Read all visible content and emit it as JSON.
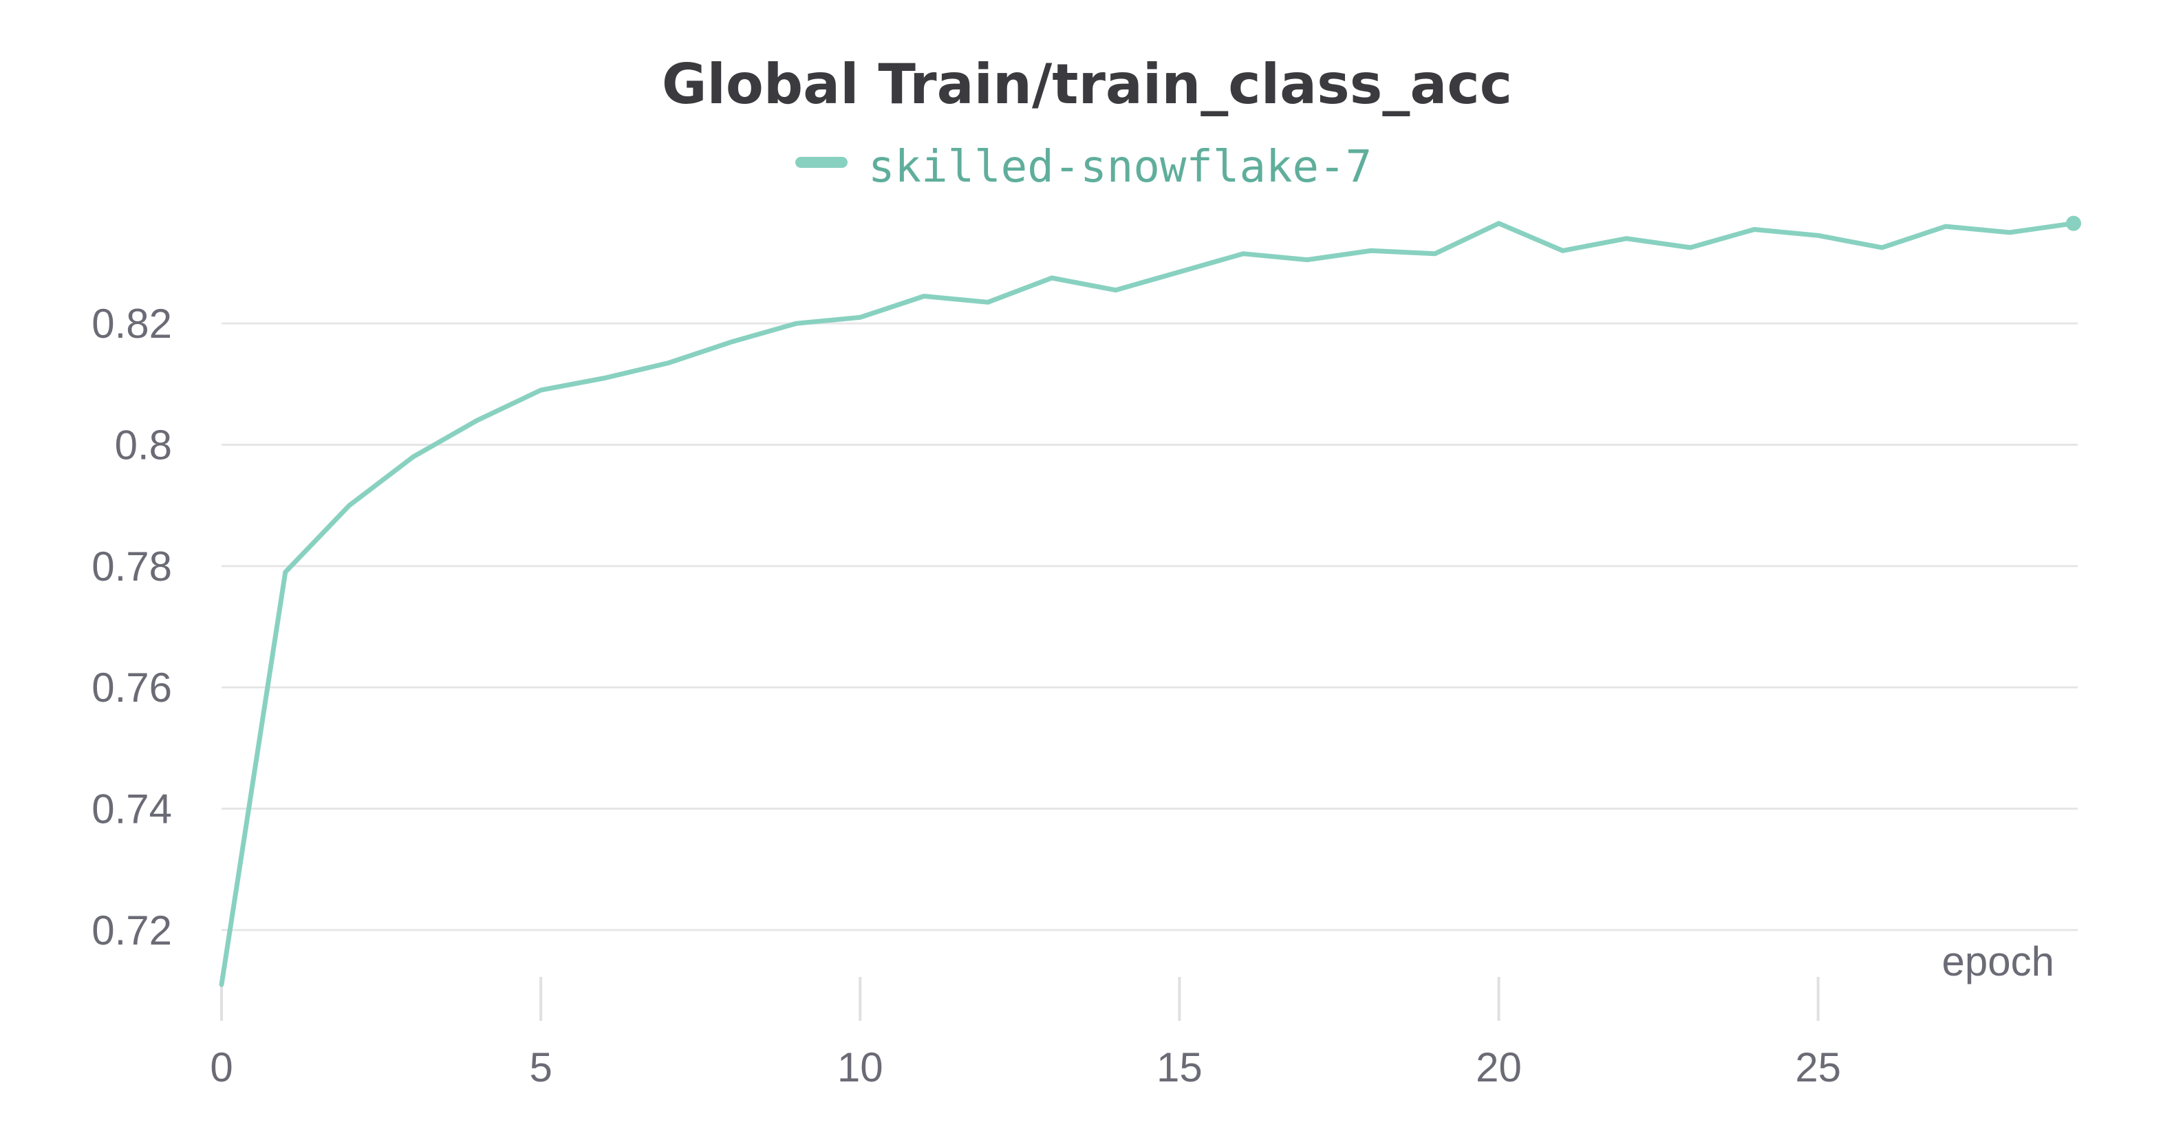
{
  "chart_data": {
    "type": "line",
    "title": "Global Train/train_class_acc",
    "xlabel": "epoch",
    "ylabel": "",
    "xlim": [
      0,
      29
    ],
    "ylim": [
      0.71,
      0.841
    ],
    "x_ticks": [
      0,
      5,
      10,
      15,
      20,
      25
    ],
    "y_ticks": [
      0.72,
      0.74,
      0.76,
      0.78,
      0.8,
      0.82
    ],
    "grid": true,
    "legend_position": "top-center",
    "x": [
      0,
      1,
      2,
      3,
      4,
      5,
      6,
      7,
      8,
      9,
      10,
      11,
      12,
      13,
      14,
      15,
      16,
      17,
      18,
      19,
      20,
      21,
      22,
      23,
      24,
      25,
      26,
      27,
      28,
      29
    ],
    "series": [
      {
        "name": "skilled-snowflake-7",
        "color": "#88d1c0",
        "values": [
          0.711,
          0.779,
          0.79,
          0.798,
          0.804,
          0.809,
          0.811,
          0.8135,
          0.817,
          0.82,
          0.821,
          0.8245,
          0.8235,
          0.8275,
          0.8255,
          0.8285,
          0.8315,
          0.8305,
          0.832,
          0.8315,
          0.8365,
          0.832,
          0.834,
          0.8325,
          0.8355,
          0.8345,
          0.8325,
          0.836,
          0.835,
          0.8365
        ]
      }
    ]
  }
}
